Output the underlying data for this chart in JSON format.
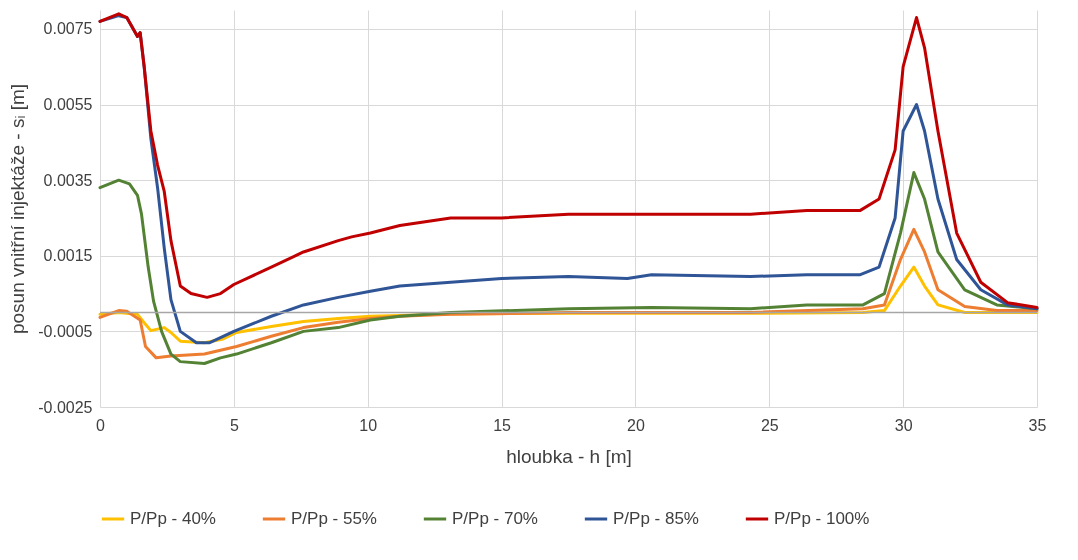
{
  "chart_data": {
    "type": "line",
    "xlabel": "hloubka - h [m]",
    "ylabel": "posun vnitřní injektáže - sᵢ [m]",
    "xlim": [
      0,
      35
    ],
    "xticks": [
      0,
      5,
      10,
      15,
      20,
      25,
      30,
      35
    ],
    "ylim": [
      -0.0025,
      0.008
    ],
    "yticks": [
      -0.0025,
      -0.0005,
      0.0015,
      0.0035,
      0.0055,
      0.0075
    ],
    "grid": true,
    "legend": "bottom",
    "line_style": "solid",
    "marker": "none",
    "ref_lines": [
      {
        "axis": "y",
        "value": 0,
        "color": "#a6a6a6"
      }
    ],
    "series": [
      {
        "name": "P/Pp - 40%",
        "color": "#ffc000",
        "x": [
          0,
          0.7,
          1.4,
          1.65,
          1.9,
          2.4,
          2.65,
          3.0,
          3.9,
          4.6,
          5.1,
          6.4,
          7.6,
          8.9,
          10.1,
          11.2,
          13.1,
          17.5,
          20.6,
          24.3,
          28.5,
          29.3,
          29.9,
          30.4,
          30.8,
          31.3,
          32.3,
          35
        ],
        "values": [
          -5e-05,
          0,
          -5e-05,
          -0.00027,
          -0.00048,
          -0.0004,
          -0.00053,
          -0.00076,
          -0.0008,
          -0.0007,
          -0.00053,
          -0.00037,
          -0.00024,
          -0.00016,
          -0.0001,
          -8e-05,
          -4e-05,
          -2e-05,
          -2e-05,
          -2e-05,
          0,
          5e-05,
          0.0007,
          0.0012,
          0.0007,
          0.0002,
          0,
          0
        ]
      },
      {
        "name": "P/Pp - 55%",
        "color": "#ed7d31",
        "x": [
          0,
          0.7,
          1.0,
          1.5,
          1.7,
          2.1,
          2.65,
          3.9,
          5.1,
          6.4,
          7.6,
          8.9,
          10.1,
          11.2,
          13.1,
          17.5,
          20.6,
          24.3,
          28.5,
          29.3,
          29.9,
          30.4,
          30.8,
          31.3,
          32.3,
          33.5,
          35
        ],
        "values": [
          -0.00013,
          5e-05,
          3e-05,
          -0.0002,
          -0.0009,
          -0.0012,
          -0.00115,
          -0.0011,
          -0.0009,
          -0.00063,
          -0.0004,
          -0.00026,
          -0.00016,
          -0.0001,
          -5e-05,
          0,
          0,
          0,
          0.0001,
          0.0002,
          0.0014,
          0.0022,
          0.0016,
          0.0006,
          0.00016,
          5e-05,
          5e-05
        ]
      },
      {
        "name": "P/Pp - 70%",
        "color": "#548235",
        "x": [
          0,
          0.7,
          1.1,
          1.4,
          1.55,
          1.8,
          2.0,
          2.3,
          2.65,
          3.0,
          3.9,
          4.5,
          5.1,
          6.4,
          7.6,
          8.9,
          10.1,
          11.2,
          13.1,
          17.5,
          20.6,
          24.3,
          26.4,
          28.5,
          29.3,
          29.9,
          30.4,
          30.8,
          31.3,
          32.3,
          33.5,
          35
        ],
        "values": [
          0.0033,
          0.0035,
          0.0034,
          0.0031,
          0.0026,
          0.0012,
          0.0003,
          -0.0005,
          -0.0011,
          -0.0013,
          -0.00135,
          -0.0012,
          -0.0011,
          -0.0008,
          -0.0005,
          -0.0004,
          -0.0002,
          -0.0001,
          0,
          0.0001,
          0.00013,
          0.0001,
          0.0002,
          0.0002,
          0.0005,
          0.0021,
          0.0037,
          0.003,
          0.0016,
          0.0006,
          0.0002,
          0.0001
        ]
      },
      {
        "name": "P/Pp - 85%",
        "color": "#2f5597",
        "x": [
          0,
          0.7,
          1.0,
          1.4,
          1.5,
          1.65,
          1.9,
          2.15,
          2.4,
          2.65,
          3.0,
          3.6,
          4.1,
          5.0,
          6.4,
          7.6,
          8.9,
          10.1,
          11.2,
          13.1,
          15.0,
          17.5,
          19.7,
          20.6,
          24.3,
          26.4,
          28.4,
          29.1,
          29.7,
          30.0,
          30.5,
          30.8,
          31.3,
          32.0,
          32.9,
          33.9,
          35
        ],
        "values": [
          0.0077,
          0.00785,
          0.0078,
          0.0073,
          0.0074,
          0.0065,
          0.0046,
          0.0033,
          0.0017,
          0.00034,
          -0.0005,
          -0.0008,
          -0.0008,
          -0.0005,
          -0.0001,
          0.0002,
          0.0004,
          0.00056,
          0.0007,
          0.0008,
          0.0009,
          0.00095,
          0.0009,
          0.001,
          0.00095,
          0.001,
          0.001,
          0.0012,
          0.0025,
          0.0048,
          0.0055,
          0.0048,
          0.003,
          0.0014,
          0.0006,
          0.0002,
          0.0001
        ]
      },
      {
        "name": "P/Pp - 100%",
        "color": "#c00000",
        "x": [
          0,
          0.7,
          1.0,
          1.4,
          1.5,
          1.65,
          1.9,
          2.15,
          2.4,
          2.65,
          3.0,
          3.4,
          4.0,
          4.5,
          5.0,
          6.4,
          7.6,
          8.9,
          9.4,
          10.1,
          11.2,
          13.1,
          15.0,
          17.5,
          19.7,
          20.6,
          24.3,
          26.4,
          28.4,
          29.1,
          29.7,
          30.0,
          30.5,
          30.8,
          31.3,
          32.0,
          32.9,
          33.9,
          35
        ],
        "values": [
          0.0077,
          0.0079,
          0.0078,
          0.0073,
          0.0074,
          0.0065,
          0.0048,
          0.0039,
          0.0032,
          0.0019,
          0.0007,
          0.0005,
          0.0004,
          0.0005,
          0.00074,
          0.0012,
          0.0016,
          0.0019,
          0.002,
          0.0021,
          0.0023,
          0.0025,
          0.0025,
          0.0026,
          0.0026,
          0.0026,
          0.0026,
          0.0027,
          0.0027,
          0.003,
          0.0043,
          0.0065,
          0.0078,
          0.007,
          0.0048,
          0.0021,
          0.0008,
          0.00026,
          0.00013
        ]
      }
    ]
  }
}
